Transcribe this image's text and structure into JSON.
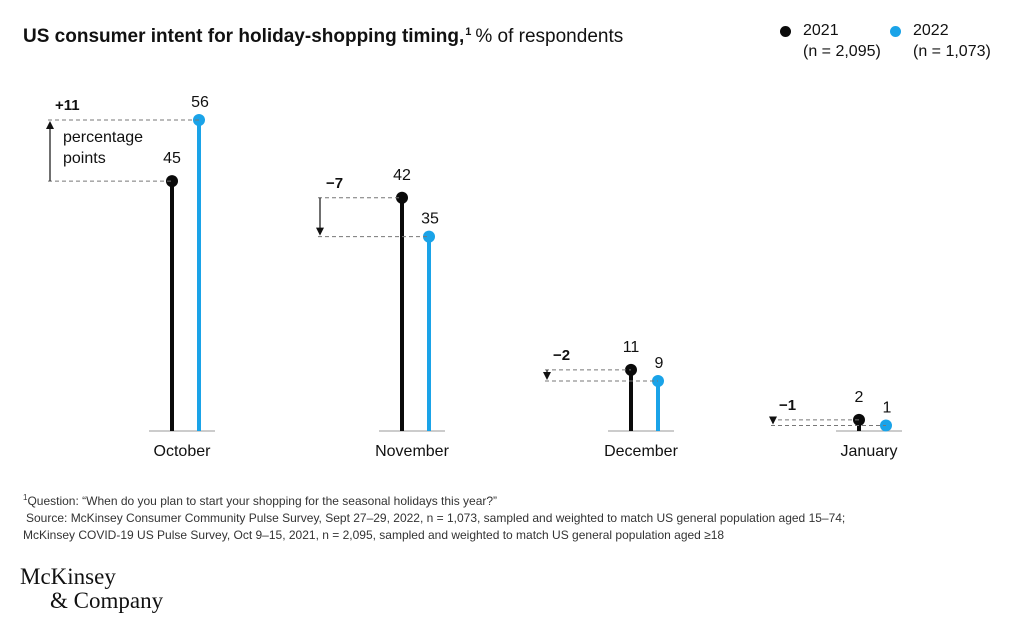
{
  "title": {
    "bold": "US consumer intent for holiday-shopping timing,",
    "footnote_mark": "1",
    "light": "% of respondents"
  },
  "legend": [
    {
      "name": "2021",
      "n": "(n = 2,095)",
      "color": "#0a0a0a"
    },
    {
      "name": "2022",
      "n": "(n = 1,073)",
      "color": "#1aa3e8"
    }
  ],
  "annotation_text": [
    "percentage",
    "points"
  ],
  "chart_data": {
    "type": "lollipop",
    "title": "US consumer intent for holiday-shopping timing",
    "ylabel": "% of respondents",
    "categories": [
      "October",
      "November",
      "December",
      "January"
    ],
    "series": [
      {
        "name": "2021",
        "values": [
          45,
          42,
          11,
          2
        ],
        "color": "#0a0a0a"
      },
      {
        "name": "2022",
        "values": [
          56,
          35,
          9,
          1
        ],
        "color": "#1aa3e8"
      }
    ],
    "differences": [
      "+11",
      "−7",
      "−2",
      "−1"
    ],
    "ylim": [
      0,
      56
    ],
    "grid": false
  },
  "footnotes": {
    "mark": "1",
    "question": "Question: “When do you plan to start your shopping for the seasonal holidays this year?”",
    "source_1": "Source: McKinsey Consumer Community Pulse Survey, Sept 27–29, 2022, n = 1,073, sampled and weighted to match US general population aged 15–74;",
    "source_2": "McKinsey COVID-19 US Pulse Survey, Oct 9–15, 2021, n = 2,095, sampled and weighted to match US general population aged ≥18"
  },
  "logo": {
    "line1": "McKinsey",
    "line2": "& Company"
  }
}
